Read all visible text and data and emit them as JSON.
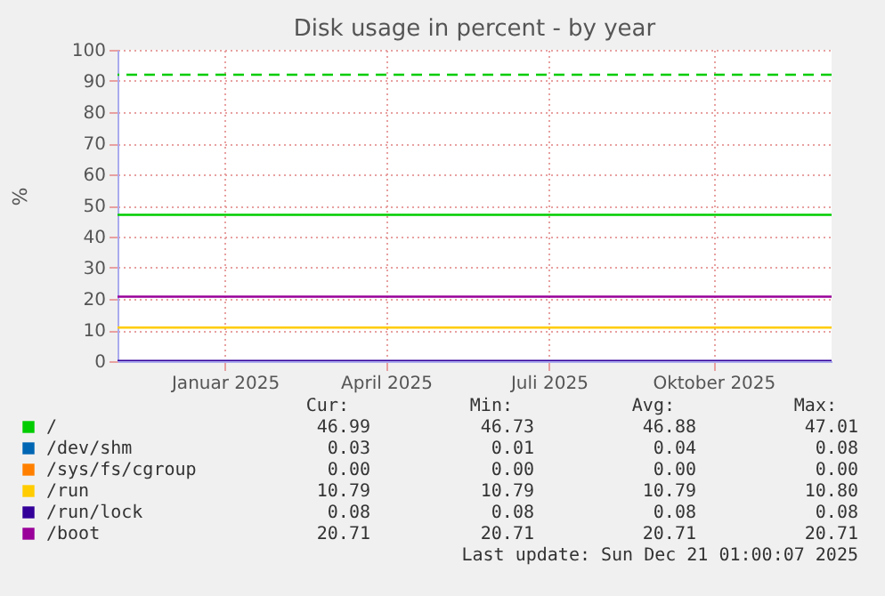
{
  "chart_data": {
    "type": "line",
    "title": "Disk usage in percent - by year",
    "ylabel": "%",
    "x": [
      "2024-11-17",
      "2025-12-21"
    ],
    "series": [
      {
        "name": "/",
        "color": "#00cc00",
        "values": [
          47,
          47
        ]
      },
      {
        "name": "/dev/shm",
        "color": "#0066b3",
        "values": [
          null,
          null
        ]
      },
      {
        "name": "/sys/fs/cgroup",
        "color": "#ff8000",
        "values": [
          null,
          null
        ]
      },
      {
        "name": "/run",
        "color": "#ffcc00",
        "values": [
          10.8,
          10.8
        ]
      },
      {
        "name": "/run/lock",
        "color": "#330099",
        "values": [
          0.1,
          0.1
        ]
      },
      {
        "name": "/boot",
        "color": "#990099",
        "values": [
          20.7,
          20.7
        ]
      }
    ],
    "xlim": [
      "2024-11-17",
      "2025-12-21"
    ],
    "xticks": [
      {
        "value": "2025-01-16",
        "label": "Januar 2025"
      },
      {
        "value": "2025-04-16",
        "label": "April 2025"
      },
      {
        "value": "2025-07-16",
        "label": "Juli 2025"
      },
      {
        "value": "2025-10-16",
        "label": "Oktober 2025"
      }
    ],
    "ylim": [
      0,
      100
    ],
    "yticks": [
      0,
      10,
      20,
      30,
      40,
      50,
      60,
      70,
      80,
      90,
      100
    ],
    "grid": true,
    "legend": "bottom",
    "line_style": "solid",
    "marker": "none",
    "ref_lines": [
      {
        "axis": "y",
        "value": 92,
        "label": null,
        "color": "#00cc00",
        "line_style": "dashed"
      }
    ],
    "annotations": [
      "Cur:",
      "Min:",
      "Avg:",
      "Max:",
      "46.99",
      "46.73",
      "46.88",
      "47.01",
      "0.03",
      "0.01",
      "0.04",
      "0.08",
      "0.00",
      "0.00",
      "0.00",
      "0.00",
      "10.79",
      "10.79",
      "10.79",
      "10.80",
      "0.08",
      "0.08",
      "0.08",
      "0.08",
      "20.71",
      "20.71",
      "20.71",
      "20.71",
      "Last update: Sun Dec 21 01:00:07 2025"
    ]
  }
}
